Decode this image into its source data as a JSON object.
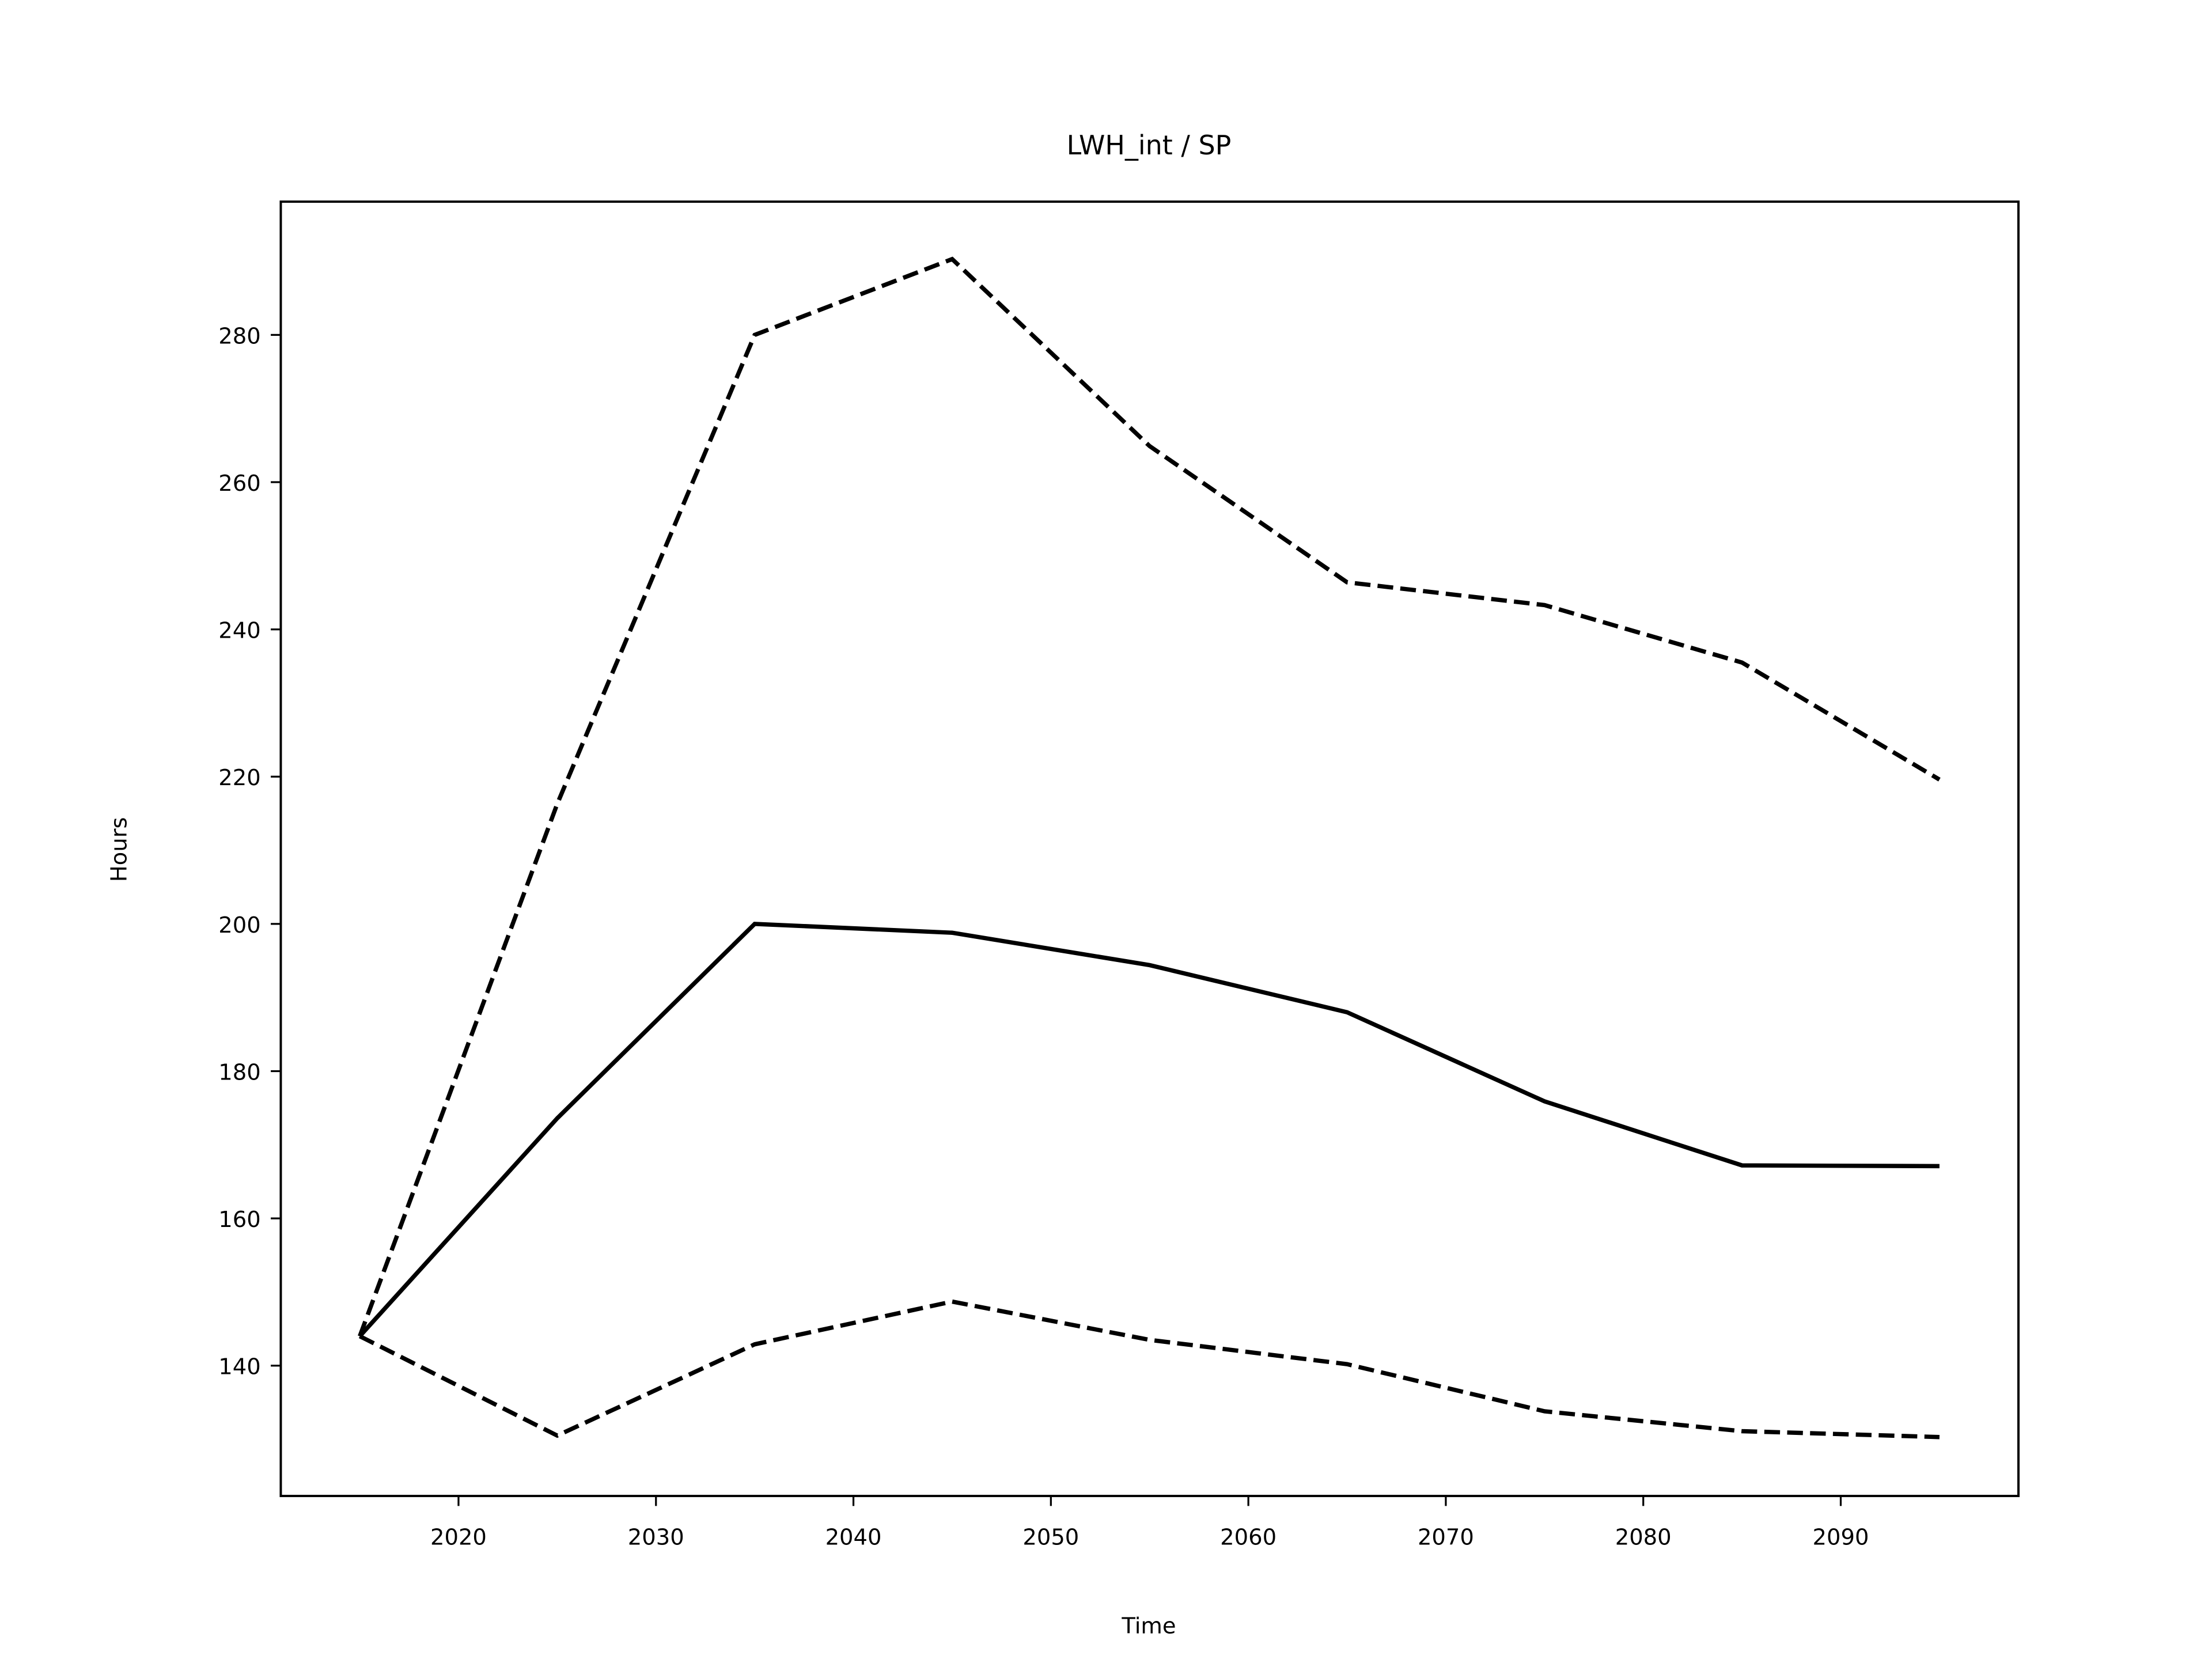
{
  "chart_data": {
    "type": "line",
    "title": "LWH_int / SP",
    "xlabel": "Time",
    "ylabel": "Hours",
    "x": [
      2015,
      2025,
      2035,
      2045,
      2055,
      2065,
      2075,
      2085,
      2095
    ],
    "series": [
      {
        "color": "#000000",
        "dashed": false,
        "values": [
          144,
          173.6,
          200,
          198.8,
          194.4,
          188,
          175.9,
          167.2,
          167.1
        ]
      },
      {
        "color": "#000000",
        "dashed": true,
        "values": [
          144,
          216.3,
          280,
          290.3,
          264.9,
          246.4,
          243.3,
          235.5,
          219.6
        ]
      },
      {
        "color": "#000000",
        "dashed": true,
        "values": [
          144,
          130.5,
          142.9,
          148.7,
          143.5,
          140.2,
          133.8,
          131.1,
          130.3
        ]
      }
    ],
    "xlim": [
      2011,
      2099
    ],
    "xticks": [
      2020,
      2030,
      2040,
      2050,
      2060,
      2070,
      2080,
      2090
    ],
    "ylim": [
      122.3,
      298.1
    ],
    "yticks": [
      140,
      160,
      180,
      200,
      220,
      240,
      260,
      280
    ],
    "grid": false
  }
}
